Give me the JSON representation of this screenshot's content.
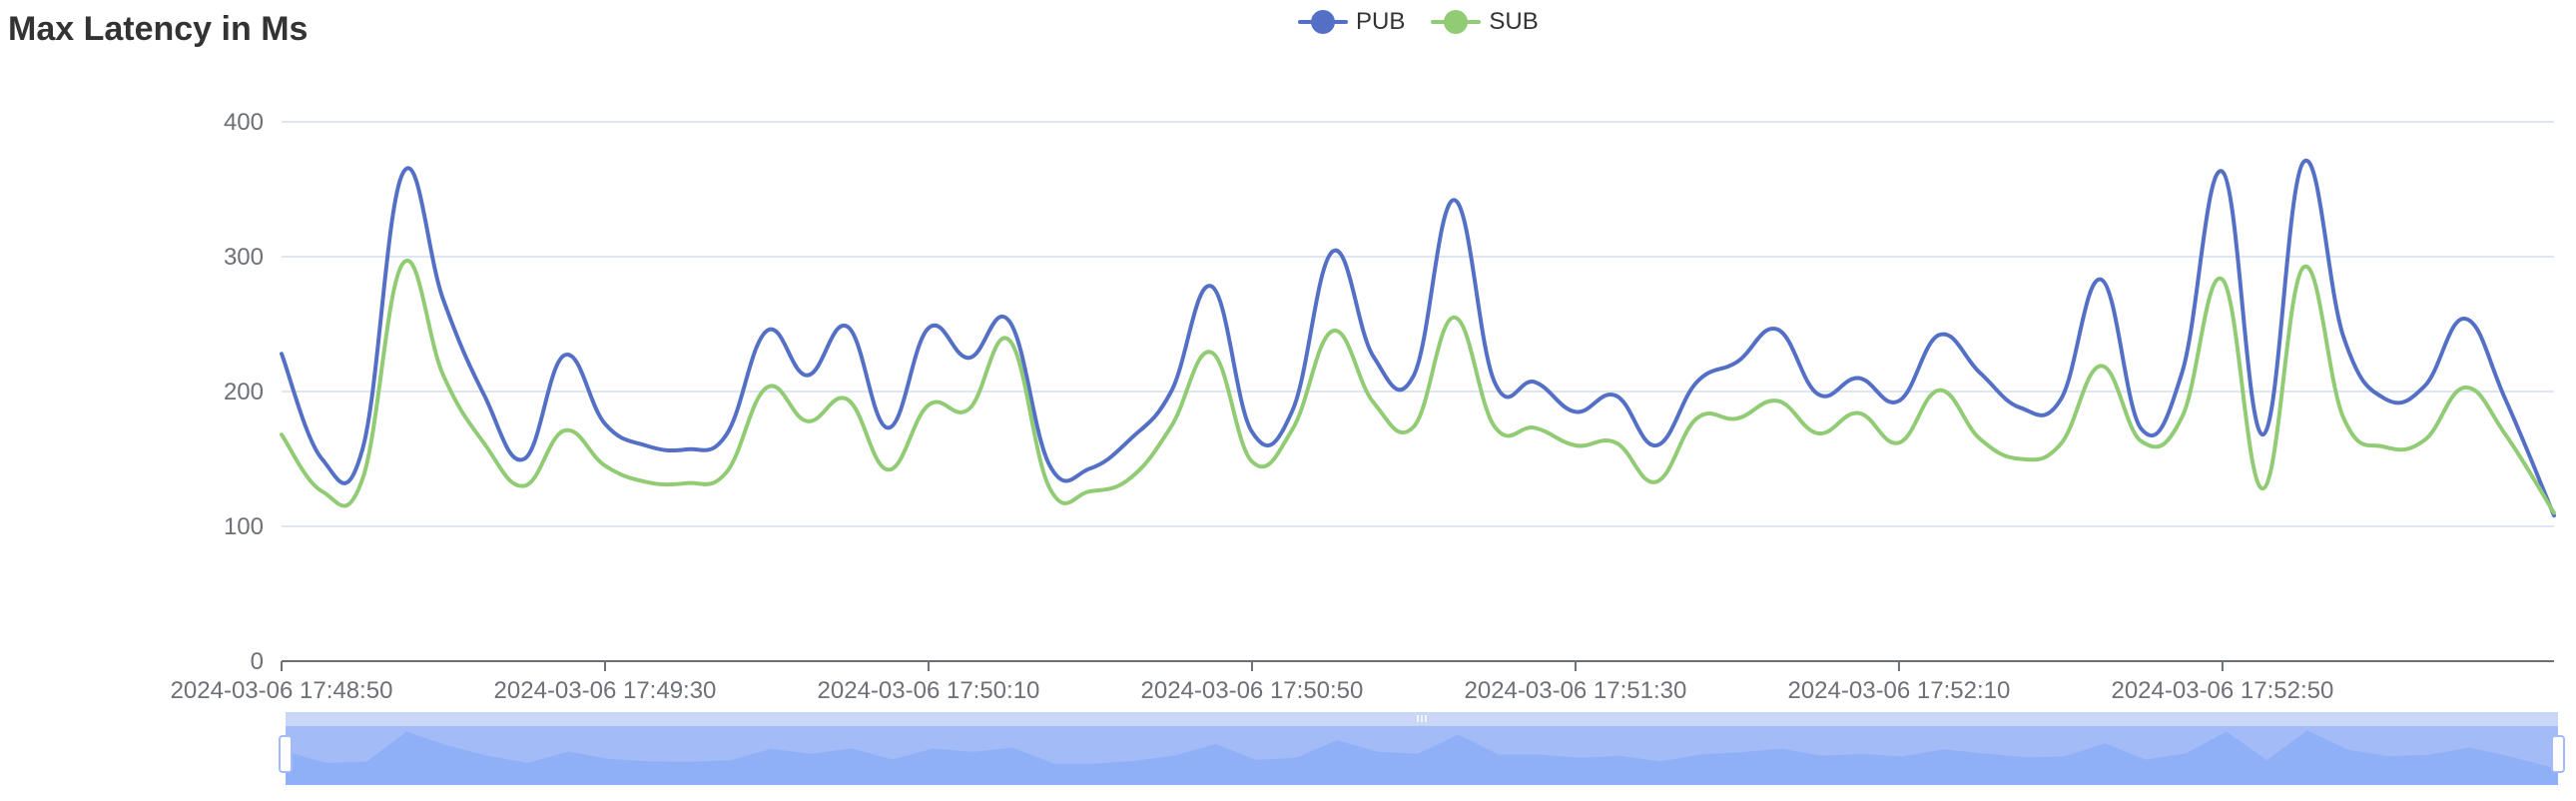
{
  "chart_data": {
    "type": "line",
    "title": "Max Latency in Ms",
    "xlabel": "",
    "ylabel": "",
    "ylim": [
      0,
      400
    ],
    "yticks": [
      0,
      100,
      200,
      300,
      400
    ],
    "xlim": [
      "2024-03-06 17:48:50",
      "2024-03-06 17:53:31"
    ],
    "xticks": [
      "2024-03-06 17:48:50",
      "2024-03-06 17:49:30",
      "2024-03-06 17:50:10",
      "2024-03-06 17:50:50",
      "2024-03-06 17:51:30",
      "2024-03-06 17:52:10",
      "2024-03-06 17:52:50"
    ],
    "grid": true,
    "legend": "top-center",
    "smooth": true,
    "x": [
      "2024-03-06 17:48:50",
      "2024-03-06 17:48:55",
      "2024-03-06 17:49:00",
      "2024-03-06 17:49:05",
      "2024-03-06 17:49:10",
      "2024-03-06 17:49:15",
      "2024-03-06 17:49:20",
      "2024-03-06 17:49:25",
      "2024-03-06 17:49:30",
      "2024-03-06 17:49:35",
      "2024-03-06 17:49:40",
      "2024-03-06 17:49:45",
      "2024-03-06 17:49:50",
      "2024-03-06 17:49:55",
      "2024-03-06 17:50:00",
      "2024-03-06 17:50:05",
      "2024-03-06 17:50:10",
      "2024-03-06 17:50:15",
      "2024-03-06 17:50:20",
      "2024-03-06 17:50:25",
      "2024-03-06 17:50:30",
      "2024-03-06 17:50:35",
      "2024-03-06 17:50:40",
      "2024-03-06 17:50:45",
      "2024-03-06 17:50:50",
      "2024-03-06 17:50:55",
      "2024-03-06 17:51:00",
      "2024-03-06 17:51:05",
      "2024-03-06 17:51:10",
      "2024-03-06 17:51:15",
      "2024-03-06 17:51:20",
      "2024-03-06 17:51:25",
      "2024-03-06 17:51:30",
      "2024-03-06 17:51:35",
      "2024-03-06 17:51:40",
      "2024-03-06 17:51:45",
      "2024-03-06 17:51:50",
      "2024-03-06 17:51:55",
      "2024-03-06 17:52:00",
      "2024-03-06 17:52:05",
      "2024-03-06 17:52:10",
      "2024-03-06 17:52:15",
      "2024-03-06 17:52:20",
      "2024-03-06 17:52:25",
      "2024-03-06 17:52:30",
      "2024-03-06 17:52:35",
      "2024-03-06 17:52:40",
      "2024-03-06 17:52:45",
      "2024-03-06 17:52:50",
      "2024-03-06 17:52:55",
      "2024-03-06 17:53:00",
      "2024-03-06 17:53:05",
      "2024-03-06 17:53:10",
      "2024-03-06 17:53:15",
      "2024-03-06 17:53:20",
      "2024-03-06 17:53:25",
      "2024-03-06 17:53:31"
    ],
    "series": [
      {
        "name": "PUB",
        "color": "#5470c6",
        "values": [
          228,
          150,
          157,
          362,
          268,
          198,
          150,
          227,
          176,
          160,
          157,
          168,
          245,
          212,
          248,
          173,
          247,
          225,
          252,
          145,
          143,
          165,
          200,
          278,
          170,
          186,
          304,
          226,
          212,
          342,
          207,
          207,
          185,
          197,
          160,
          207,
          222,
          246,
          198,
          210,
          193,
          242,
          214,
          188,
          194,
          283,
          172,
          214,
          363,
          168,
          370,
          240,
          195,
          204,
          254,
          194,
          108
        ]
      },
      {
        "name": "SUB",
        "color": "#91cc75",
        "values": [
          168,
          126,
          135,
          295,
          212,
          162,
          130,
          171,
          145,
          133,
          132,
          140,
          203,
          178,
          194,
          142,
          190,
          187,
          238,
          128,
          126,
          136,
          174,
          229,
          148,
          172,
          245,
          192,
          174,
          255,
          174,
          173,
          160,
          162,
          133,
          180,
          180,
          193,
          169,
          184,
          162,
          201,
          165,
          150,
          161,
          219,
          163,
          181,
          283,
          128,
          292,
          180,
          159,
          164,
          203,
          168,
          110
        ]
      }
    ]
  },
  "zoom": {
    "start": 0,
    "end": 100,
    "handle_icon": "drag-handle-icon",
    "grip_icon": "grip-icon",
    "fill_color": "#8fb0f7"
  }
}
